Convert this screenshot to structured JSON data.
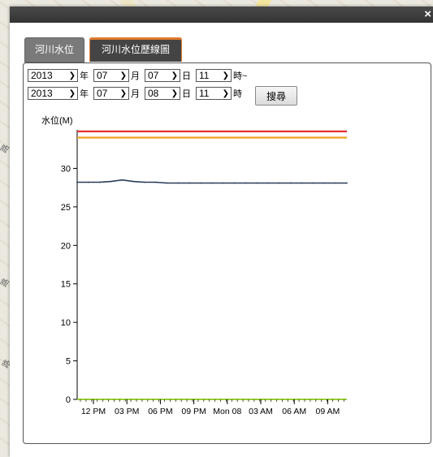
{
  "dialog": {
    "close_label": "×"
  },
  "tabs": [
    {
      "label": "河川水位",
      "active": false
    },
    {
      "label": "河川水位歷線圖",
      "active": true
    }
  ],
  "query": {
    "start": {
      "year": "2013",
      "month": "07",
      "day": "07",
      "hour": "11"
    },
    "end": {
      "year": "2013",
      "month": "07",
      "day": "08",
      "hour": "11"
    },
    "units": {
      "year": "年",
      "month": "月",
      "day": "日",
      "hour_start": "時~",
      "hour_end": "時"
    },
    "search_label": "搜尋"
  },
  "chart_data": {
    "type": "line",
    "ylabel": "水位(M)",
    "ylim": [
      0,
      35
    ],
    "yticks": [
      0,
      5,
      10,
      15,
      20,
      25,
      30
    ],
    "xticks": [
      "12 PM",
      "03 PM",
      "06 PM",
      "09 PM",
      "Mon 08",
      "03 AM",
      "06 AM",
      "09 AM"
    ],
    "series": [
      {
        "color": "#2a3b5a",
        "values": [
          28.2,
          28.2,
          28.2,
          28.3,
          28.5,
          28.3,
          28.2,
          28.2,
          28.1,
          28.1,
          28.1,
          28.1,
          28.1,
          28.1,
          28.1,
          28.1,
          28.1,
          28.1,
          28.1,
          28.1,
          28.1,
          28.1,
          28.1,
          28.1,
          28.1
        ]
      },
      {
        "color": "#e53030",
        "values": [
          34.8,
          34.8
        ]
      },
      {
        "color": "#f0a020",
        "values": [
          34.0,
          34.0
        ]
      }
    ],
    "grid": false,
    "baseline_color": "#9acd32"
  }
}
